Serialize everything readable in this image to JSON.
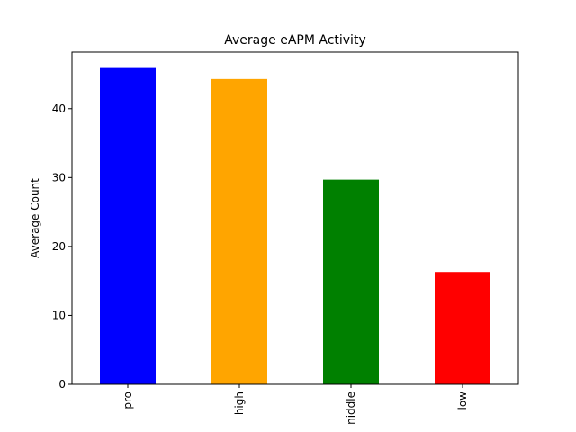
{
  "chart_data": {
    "type": "bar",
    "title": "Average eAPM Activity",
    "xlabel": "",
    "ylabel": "Average Count",
    "categories": [
      "pro",
      "high",
      "niddle",
      "low"
    ],
    "values": [
      45.9,
      44.3,
      29.7,
      16.3
    ],
    "colors": [
      "#0000ff",
      "#ffa500",
      "#008000",
      "#ff0000"
    ],
    "ylim": [
      0,
      48.2
    ],
    "yticks": [
      0,
      10,
      20,
      30,
      40
    ],
    "ytick_labels": [
      "0",
      "10",
      "20",
      "30",
      "40"
    ],
    "grid": false,
    "legend": "none",
    "x_tick_rotation": "vertical"
  }
}
